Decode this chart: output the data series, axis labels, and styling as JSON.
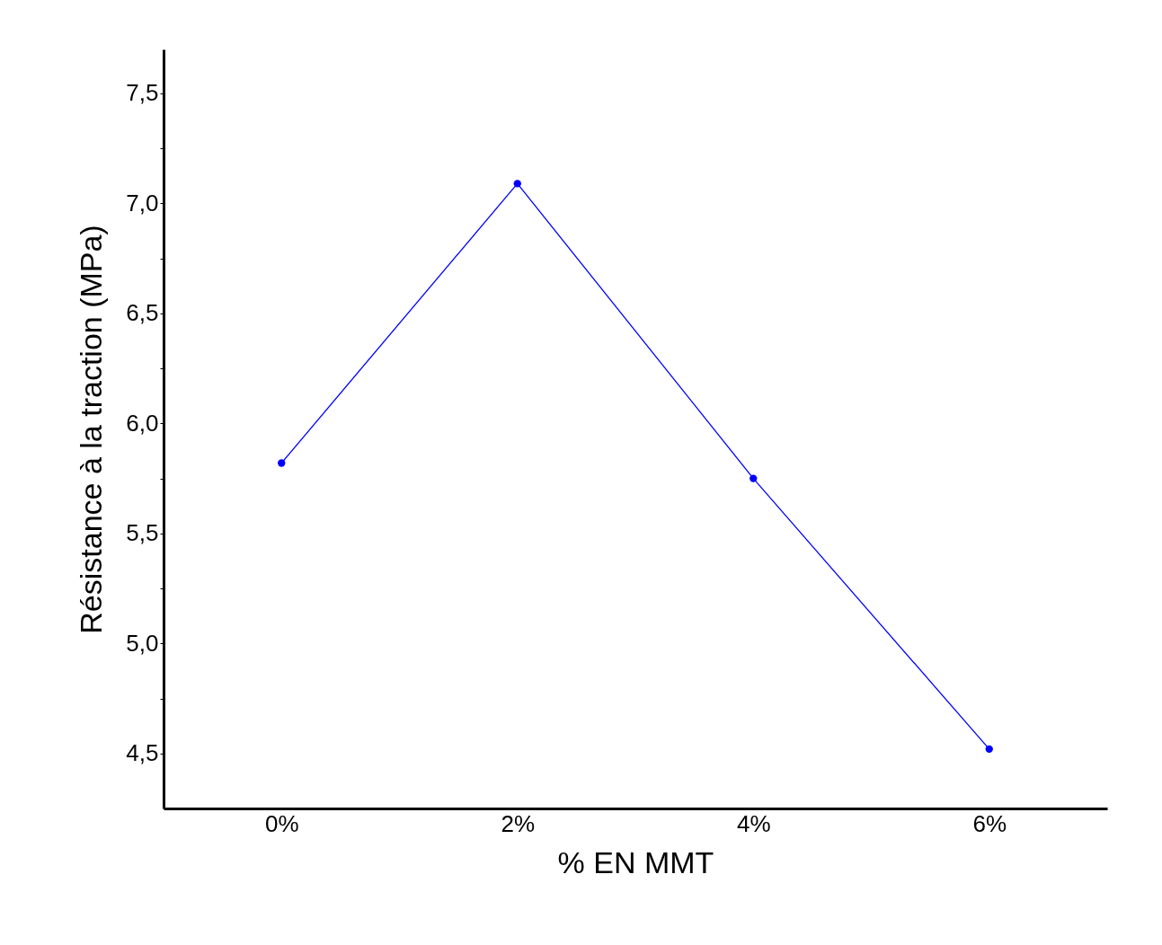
{
  "chart_data": {
    "type": "line",
    "xlabel": "% EN MMT",
    "ylabel": "Résistance à la traction (MPa)",
    "categories": [
      "0%",
      "2%",
      "4%",
      "6%"
    ],
    "series": [
      {
        "color": "#0000ff",
        "values": [
          5.82,
          7.09,
          5.75,
          4.52
        ]
      }
    ],
    "ylim": [
      4.25,
      7.7
    ],
    "yticks": [
      {
        "value": 4.5,
        "label": "4,5"
      },
      {
        "value": 4.75,
        "label": null
      },
      {
        "value": 5.0,
        "label": "5,0"
      },
      {
        "value": 5.25,
        "label": null
      },
      {
        "value": 5.5,
        "label": "5,5"
      },
      {
        "value": 5.75,
        "label": null
      },
      {
        "value": 6.0,
        "label": "6,0"
      },
      {
        "value": 6.25,
        "label": null
      },
      {
        "value": 6.5,
        "label": "6,5"
      },
      {
        "value": 6.75,
        "label": null
      },
      {
        "value": 7.0,
        "label": "7,0"
      },
      {
        "value": 7.25,
        "label": null
      },
      {
        "value": 7.5,
        "label": "7,5"
      }
    ],
    "grid": false,
    "marker": "circle",
    "line_style": "solid"
  }
}
